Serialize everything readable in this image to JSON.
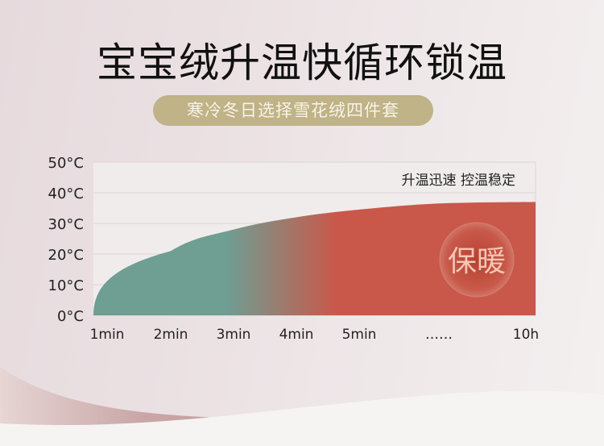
{
  "header": {
    "title": "宝宝绒升温快循环锁温",
    "subtitle_pill": "寒冷冬日选择雪花绒四件套"
  },
  "chart_data": {
    "type": "area",
    "title": "",
    "xlabel": "",
    "ylabel": "",
    "categories": [
      "1min",
      "2min",
      "3min",
      "4min",
      "5min",
      "……",
      "10h"
    ],
    "values": [
      0,
      21,
      28,
      32,
      34.5,
      36.5,
      37
    ],
    "ylim": [
      0,
      50
    ],
    "yticks": [
      0,
      10,
      20,
      30,
      40,
      50
    ],
    "ytick_labels": [
      "0°C",
      "10°C",
      "20°C",
      "30°C",
      "40°C",
      "50°C"
    ],
    "grid": true,
    "annotation": "升温迅速 控温稳定",
    "badge": "保暖",
    "colors": {
      "start": "#6f9e93",
      "end": "#c9584a",
      "pill": "#bfb387"
    }
  }
}
